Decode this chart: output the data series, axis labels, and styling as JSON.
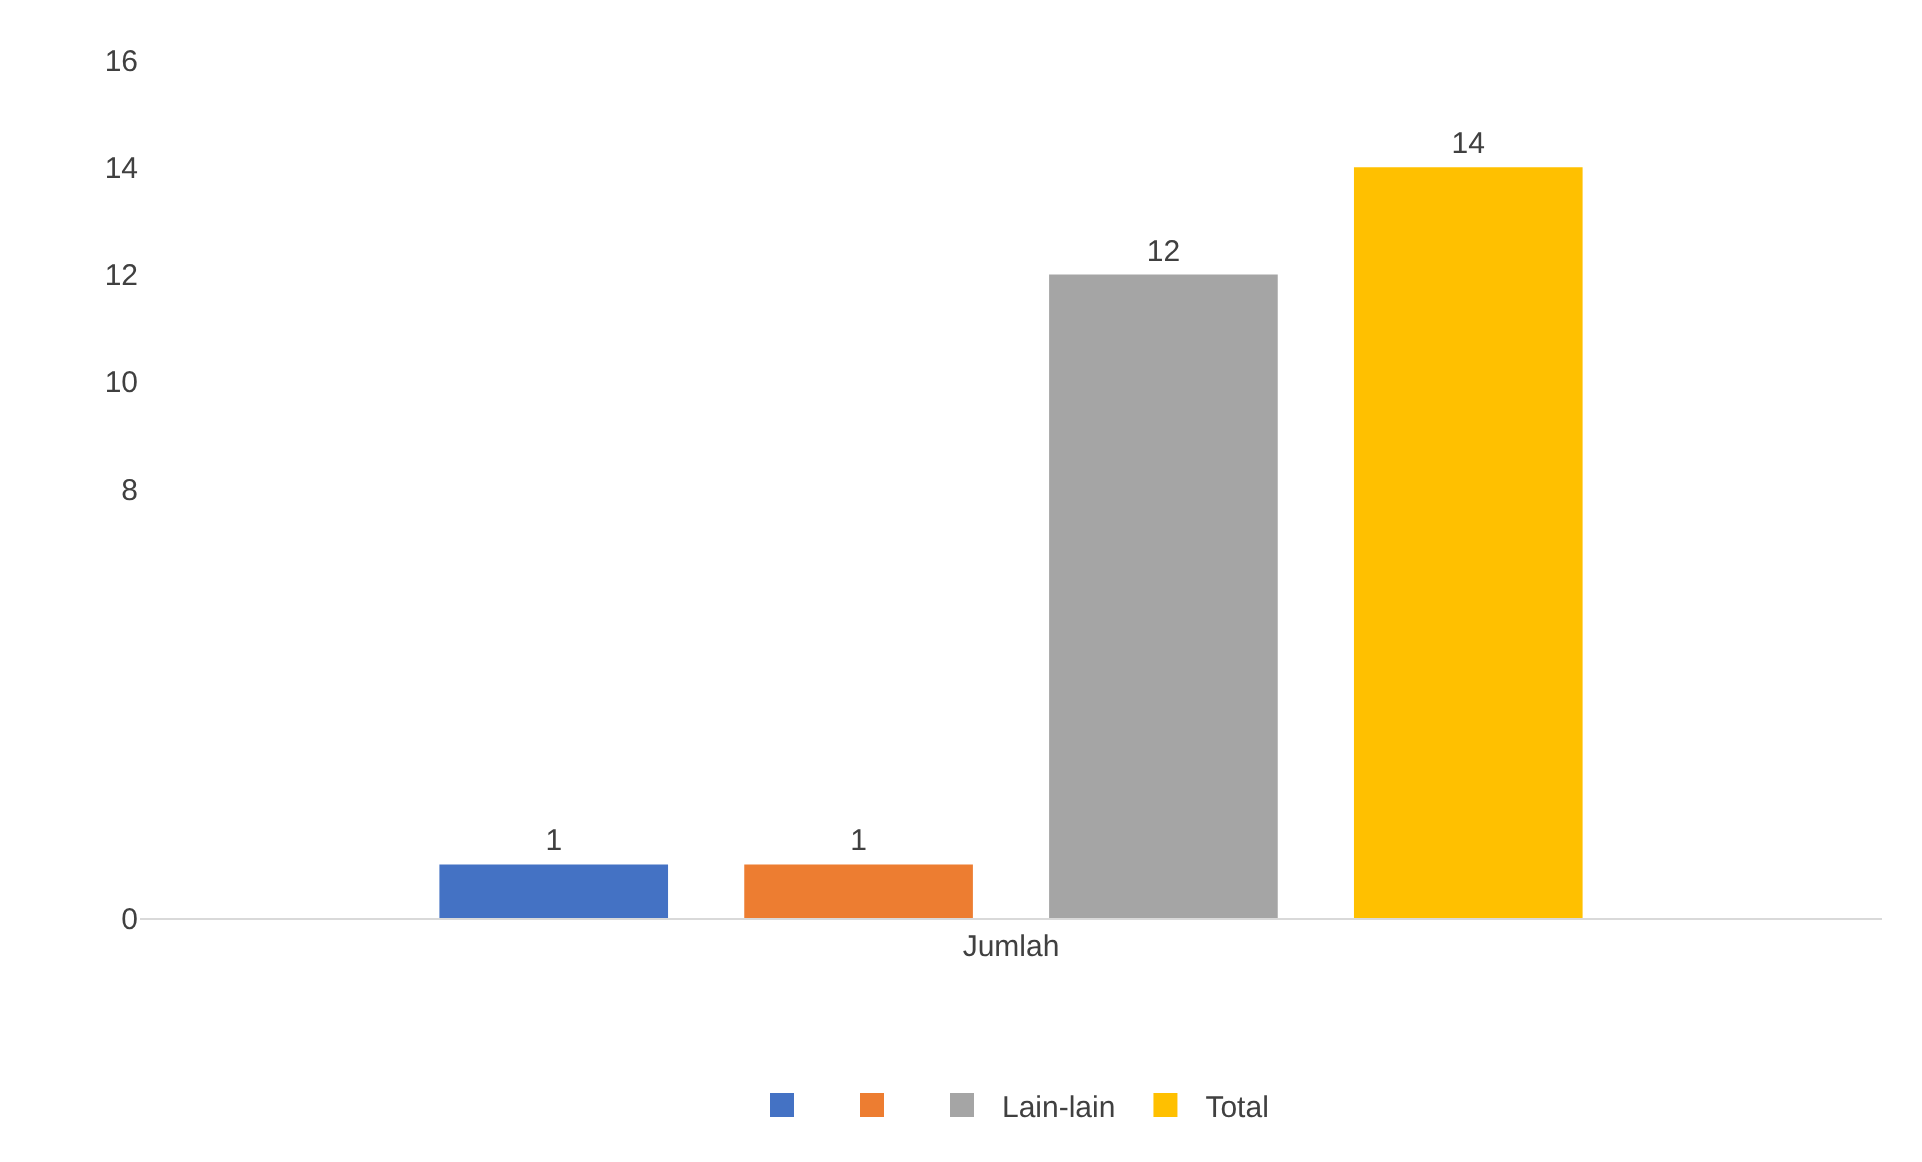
{
  "chart_data": {
    "type": "bar",
    "categories": [
      "Jumlah"
    ],
    "series": [
      {
        "name": null,
        "color": "#4472c4",
        "values": [
          1
        ]
      },
      {
        "name": null,
        "color": "#ed7d31",
        "values": [
          1
        ]
      },
      {
        "name": "Lain-lain",
        "color": "#a5a5a5",
        "values": [
          12
        ]
      },
      {
        "name": "Total",
        "color": "#ffc000",
        "values": [
          14
        ]
      }
    ],
    "ylim": [
      0,
      16
    ],
    "yticks": [
      0,
      8,
      10,
      12,
      14,
      16
    ],
    "grid": false,
    "legend": "bottom",
    "data_labels": true
  }
}
